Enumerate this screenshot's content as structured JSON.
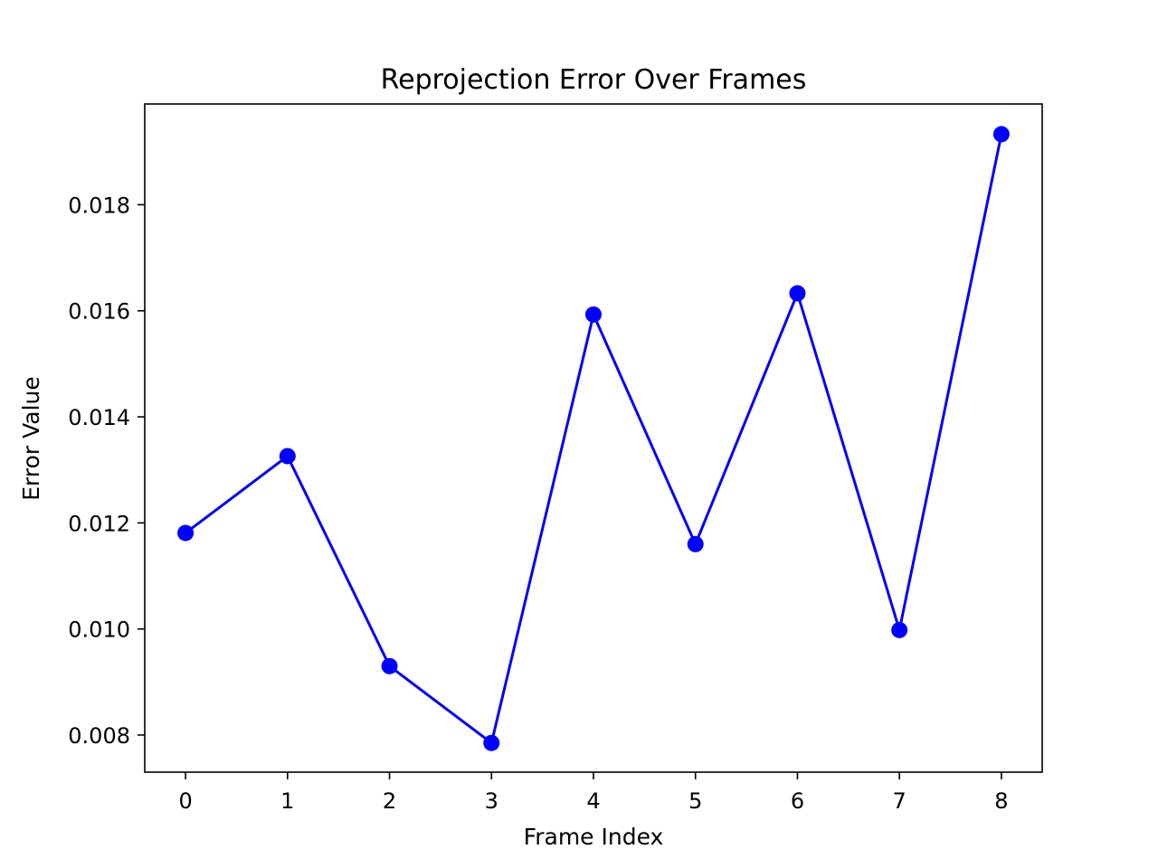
{
  "chart_data": {
    "type": "line",
    "title": "Reprojection Error Over Frames",
    "xlabel": "Frame Index",
    "ylabel": "Error Value",
    "x": [
      0,
      1,
      2,
      3,
      4,
      5,
      6,
      7,
      8
    ],
    "series": [
      {
        "values": [
          0.01181,
          0.01326,
          0.0093,
          0.00785,
          0.01593,
          0.0116,
          0.01633,
          0.00998,
          0.01933
        ],
        "color": "#0000ff"
      }
    ],
    "xlim": [
      -0.4,
      8.4
    ],
    "ylim": [
      0.0073,
      0.0199
    ],
    "xticks": [
      0,
      1,
      2,
      3,
      4,
      5,
      6,
      7,
      8
    ],
    "yticks": [
      0.008,
      0.01,
      0.012,
      0.014,
      0.016,
      0.018
    ],
    "ytick_labels": [
      "0.008",
      "0.010",
      "0.012",
      "0.014",
      "0.016",
      "0.018"
    ],
    "marker": "circle",
    "grid": false,
    "legend": "none"
  }
}
